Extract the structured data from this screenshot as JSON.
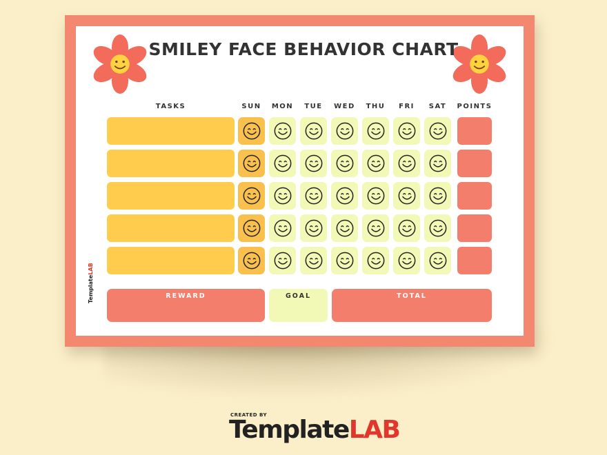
{
  "title": "SMILEY FACE BEHAVIOR CHART",
  "headers": {
    "tasks": "TASKS",
    "days": [
      "SUN",
      "MON",
      "TUE",
      "WED",
      "THU",
      "FRI",
      "SAT"
    ],
    "points": "POINTS"
  },
  "rows": 5,
  "footer": {
    "reward": "REWARD",
    "goal": "GOAL",
    "total": "TOTAL"
  },
  "side_logo": {
    "template": "Template",
    "lab": "LAB"
  },
  "brand": {
    "created_by": "CREATED BY",
    "template": "Template",
    "lab": "LAB"
  },
  "colors": {
    "border": "#f48770",
    "task_fill": "#ffcc4d",
    "sunday_fill": "#f9c04d",
    "day_fill": "#f2f8b5",
    "points_fill": "#f37e6b",
    "flower_petal": "#f26b5b",
    "flower_center": "#ffd23f"
  },
  "icons": {
    "cell_icon": "smiley-face-icon",
    "decoration": "flower-icon"
  }
}
